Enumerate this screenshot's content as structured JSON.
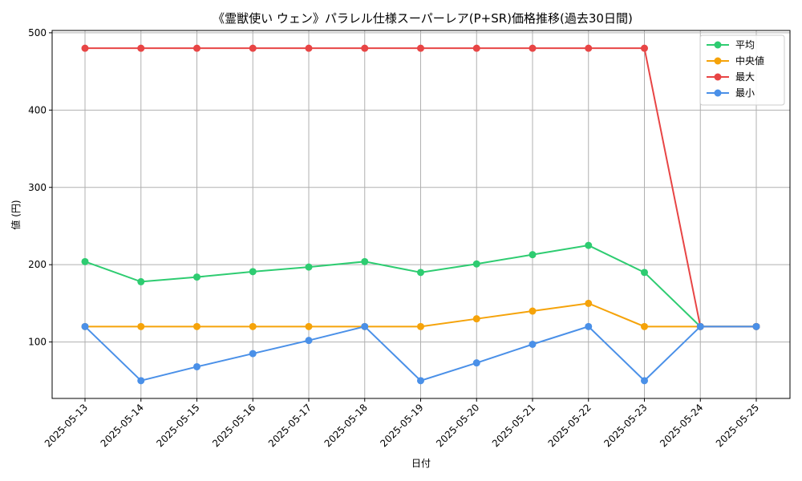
{
  "chart_data": {
    "type": "line",
    "title": "《霊獣使い ウェン》パラレル仕様スーパーレア(P+SR)価格推移(過去30日間)",
    "xlabel": "日付",
    "ylabel": "値 (円)",
    "x": [
      "2025-05-13",
      "2025-05-14",
      "2025-05-15",
      "2025-05-16",
      "2025-05-17",
      "2025-05-18",
      "2025-05-19",
      "2025-05-20",
      "2025-05-21",
      "2025-05-22",
      "2025-05-23",
      "2025-05-24",
      "2025-05-25"
    ],
    "ylim": [
      27,
      503
    ],
    "yticks": [
      100,
      200,
      300,
      400,
      500
    ],
    "grid": true,
    "legend_position": "top-right",
    "series": [
      {
        "name": "平均",
        "color": "#2ecc71",
        "values": [
          204,
          178,
          184,
          191,
          197,
          204,
          190,
          201,
          213,
          225,
          190,
          120,
          120
        ]
      },
      {
        "name": "中央値",
        "color": "#f5a30a",
        "values": [
          120,
          120,
          120,
          120,
          120,
          120,
          120,
          130,
          140,
          150,
          120,
          120,
          120
        ]
      },
      {
        "name": "最大",
        "color": "#e84545",
        "values": [
          480,
          480,
          480,
          480,
          480,
          480,
          480,
          480,
          480,
          480,
          480,
          120,
          120
        ]
      },
      {
        "name": "最小",
        "color": "#4a90e8",
        "values": [
          120,
          50,
          68,
          85,
          102,
          120,
          50,
          73,
          97,
          120,
          50,
          120,
          120
        ]
      }
    ]
  }
}
